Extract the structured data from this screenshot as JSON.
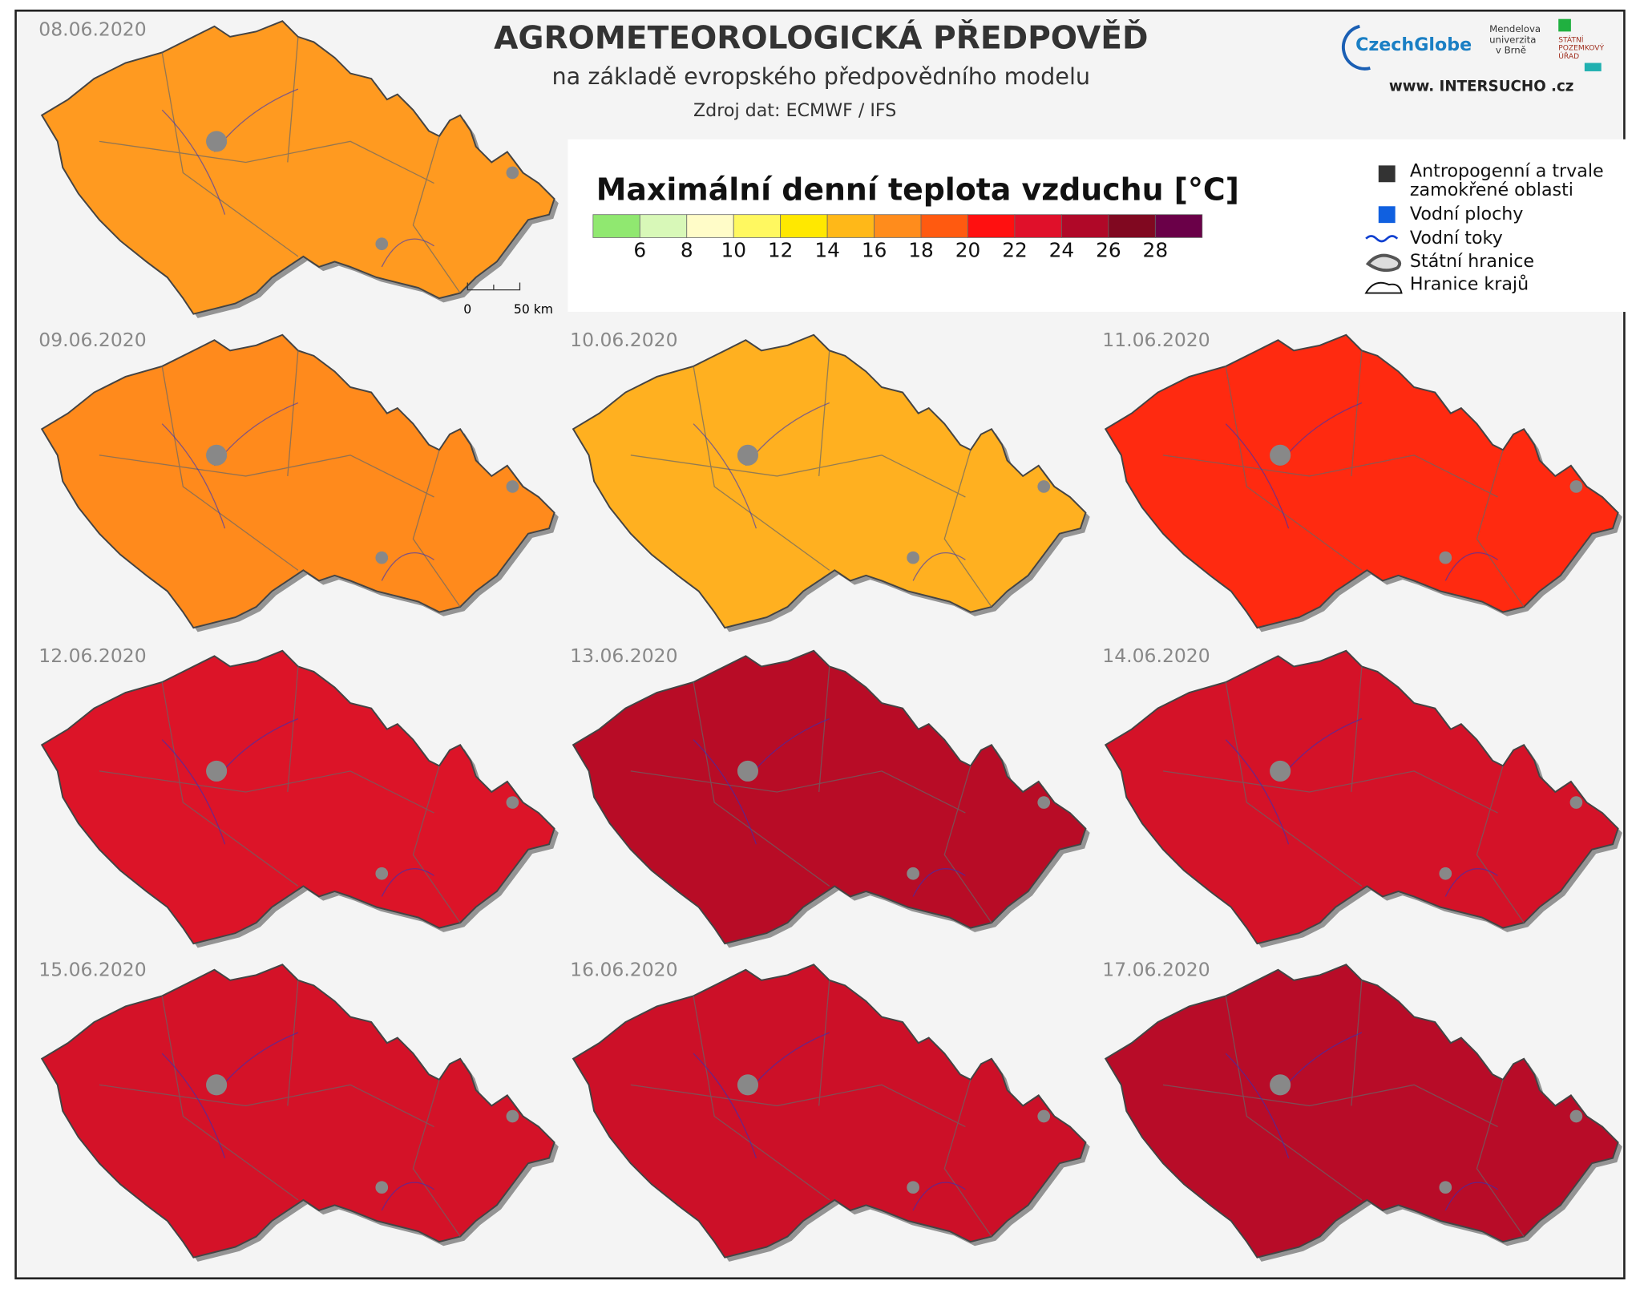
{
  "header": {
    "title": "AGROMETEOROLOGICKÁ  PŘEDPOVĚĎ",
    "subtitle": "na základě evropského předpovědního modelu",
    "source": "Zdroj dat: ECMWF / IFS"
  },
  "logos": {
    "czechglobe": "CzechGlobe",
    "mendel": [
      "Mendelova",
      "univerzita",
      "v Brně"
    ],
    "spu": [
      "STÁTNÍ",
      "POZEMKOVÝ",
      "ÚŘAD"
    ],
    "intersucho": "www. INTERSUCHO .cz"
  },
  "legend": {
    "title": "Maximální denní teplota vzduchu [°C]",
    "colors": [
      "#90e870",
      "#d8f8b8",
      "#fffcc8",
      "#fff860",
      "#ffe800",
      "#ffb818",
      "#ff8c1c",
      "#ff5a10",
      "#ff1010",
      "#e0102a",
      "#b00828",
      "#800820",
      "#6a0048"
    ],
    "labels": [
      6,
      8,
      10,
      12,
      14,
      16,
      18,
      20,
      22,
      24,
      26,
      28
    ],
    "items": [
      "Antropogenní a trvale",
      "zamokřené oblasti",
      "Vodní plochy",
      "Vodní toky",
      "Státní hranice",
      "Hranice krajů"
    ]
  },
  "scalebar": [
    "0",
    "50 km"
  ],
  "maps": [
    {
      "date": "08.06.2020",
      "color": "#ff9a20"
    },
    {
      "date": "09.06.2020",
      "color": "#ff8a1c"
    },
    {
      "date": "10.06.2020",
      "color": "#ffb020"
    },
    {
      "date": "11.06.2020",
      "color": "#ff2a10"
    },
    {
      "date": "12.06.2020",
      "color": "#dc1428"
    },
    {
      "date": "13.06.2020",
      "color": "#b80c26"
    },
    {
      "date": "14.06.2020",
      "color": "#d41228"
    },
    {
      "date": "15.06.2020",
      "color": "#d41228"
    },
    {
      "date": "16.06.2020",
      "color": "#cc1028"
    },
    {
      "date": "17.06.2020",
      "color": "#b80c28"
    }
  ]
}
